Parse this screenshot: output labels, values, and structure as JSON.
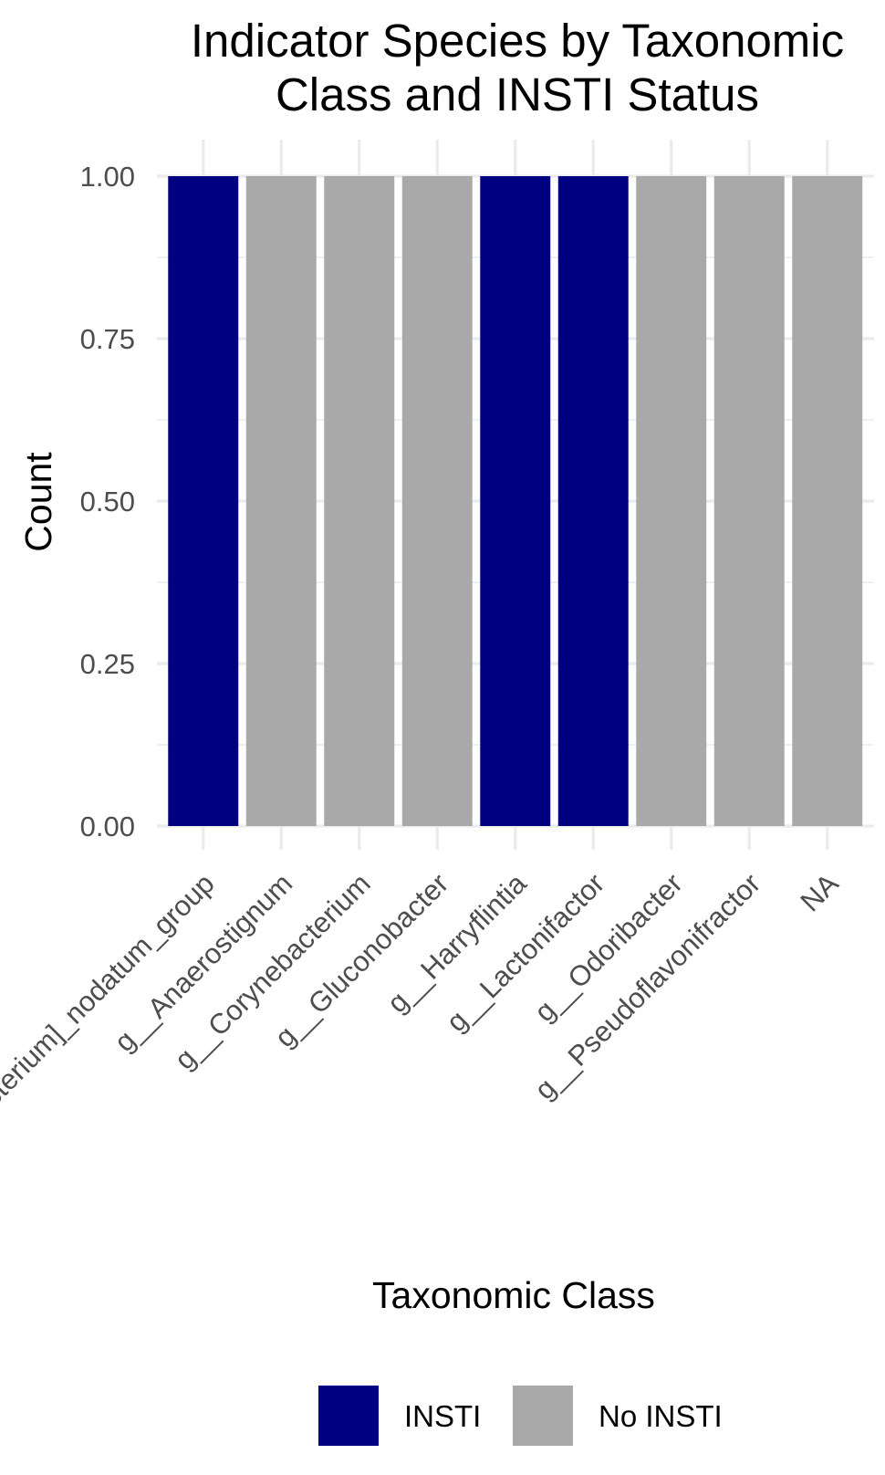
{
  "chart_data": {
    "type": "bar",
    "title": "Indicator Species by Taxonomic Class and INSTI Status",
    "title_lines": [
      "Indicator Species by Taxonomic",
      "Class and INSTI Status"
    ],
    "xlabel": "Taxonomic Class",
    "ylabel": "Count",
    "categories": [
      "g__[Eubacterium]_nodatum_group",
      "g__Anaerostignum",
      "g__Corynebacterium",
      "g__Gluconobacter",
      "g__Harryflintia",
      "g__Lactonifactor",
      "g__Odoribacter",
      "g__Pseudoflavonifractor",
      "NA"
    ],
    "values": [
      1,
      1,
      1,
      1,
      1,
      1,
      1,
      1,
      1
    ],
    "groups": [
      "INSTI",
      "No INSTI",
      "No INSTI",
      "No INSTI",
      "INSTI",
      "INSTI",
      "No INSTI",
      "No INSTI",
      "No INSTI"
    ],
    "ylim": [
      0,
      1
    ],
    "yticks": [
      "0.00",
      "0.25",
      "0.50",
      "0.75",
      "1.00"
    ],
    "ytick_values": [
      0,
      0.25,
      0.5,
      0.75,
      1
    ],
    "grid": true,
    "legend": {
      "position": "bottom",
      "entries": [
        {
          "name": "INSTI",
          "color": "#000080"
        },
        {
          "name": "No INSTI",
          "color": "#a9a9a9"
        }
      ]
    }
  }
}
